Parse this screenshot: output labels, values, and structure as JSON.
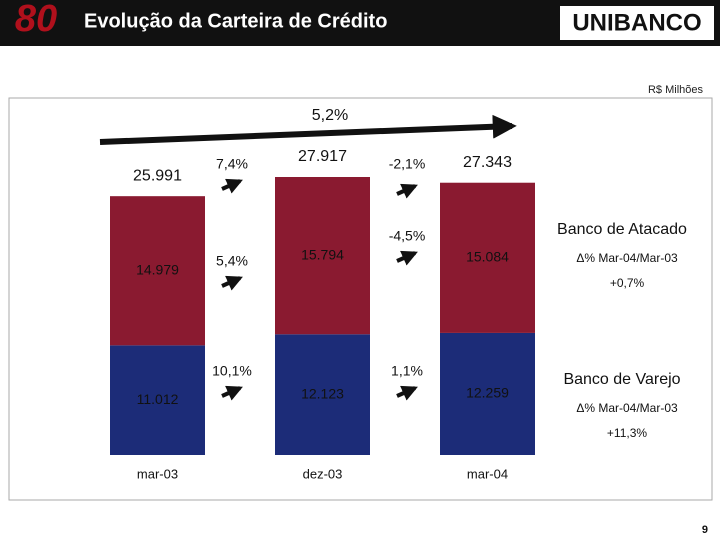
{
  "header": {
    "badge": "80",
    "title": "Evolução da Carteira de Crédito",
    "logo": "UNIBANCO"
  },
  "page_number": "9",
  "chart_data": {
    "type": "bar",
    "stacked": true,
    "unit_label": "R$ Milhões",
    "categories": [
      "mar-03",
      "dez-03",
      "mar-04"
    ],
    "series": [
      {
        "name": "Banco de Varejo",
        "color": "#1c2c78",
        "values": [
          11012,
          12123,
          12259
        ],
        "value_labels": [
          "11.012",
          "12.123",
          "12.259"
        ],
        "change_label": "Δ% Mar-04/Mar-03",
        "change": "+11,3%"
      },
      {
        "name": "Banco de Atacado",
        "color": "#8a1a30",
        "values": [
          14979,
          15794,
          15084
        ],
        "value_labels": [
          "14.979",
          "15.794",
          "15.084"
        ],
        "change_label": "Δ% Mar-04/Mar-03",
        "change": "+0,7%"
      }
    ],
    "totals": {
      "values": [
        25991,
        27917,
        27343
      ],
      "value_labels": [
        "25.991",
        "27.917",
        "27.343"
      ]
    },
    "growth": {
      "overall": "5,2%",
      "total": [
        "7,4%",
        "-2,1%"
      ],
      "atacado": [
        "5,4%",
        "-4,5%"
      ],
      "varejo": [
        "10,1%",
        "1,1%"
      ]
    }
  }
}
